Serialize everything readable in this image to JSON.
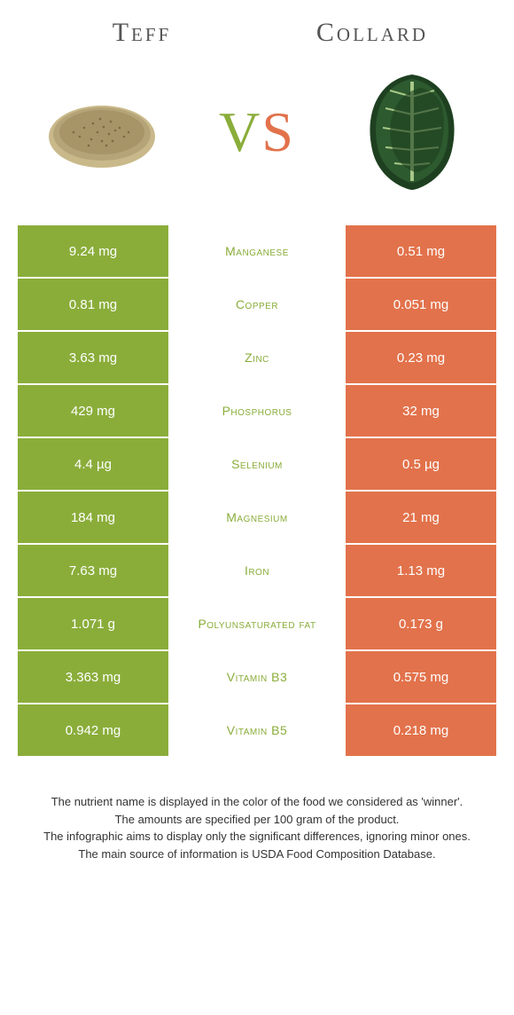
{
  "header": {
    "left": "Teff",
    "right": "Collard"
  },
  "vs": {
    "v": "V",
    "s": "S"
  },
  "colors": {
    "left": "#8aad3a",
    "right": "#e2724b",
    "left_text": "#ffffff",
    "right_text": "#ffffff",
    "background": "#ffffff",
    "header_text": "#555555"
  },
  "table": {
    "rows": [
      {
        "left": "9.24 mg",
        "label": "Manganese",
        "right": "0.51 mg",
        "winner": "left"
      },
      {
        "left": "0.81 mg",
        "label": "Copper",
        "right": "0.051 mg",
        "winner": "left"
      },
      {
        "left": "3.63 mg",
        "label": "Zinc",
        "right": "0.23 mg",
        "winner": "left"
      },
      {
        "left": "429 mg",
        "label": "Phosphorus",
        "right": "32 mg",
        "winner": "left"
      },
      {
        "left": "4.4 µg",
        "label": "Selenium",
        "right": "0.5 µg",
        "winner": "left"
      },
      {
        "left": "184 mg",
        "label": "Magnesium",
        "right": "21 mg",
        "winner": "left"
      },
      {
        "left": "7.63 mg",
        "label": "Iron",
        "right": "1.13 mg",
        "winner": "left"
      },
      {
        "left": "1.071 g",
        "label": "Polyunsaturated fat",
        "right": "0.173 g",
        "winner": "left"
      },
      {
        "left": "3.363 mg",
        "label": "Vitamin B3",
        "right": "0.575 mg",
        "winner": "left"
      },
      {
        "left": "0.942 mg",
        "label": "Vitamin B5",
        "right": "0.218 mg",
        "winner": "left"
      }
    ]
  },
  "footer": {
    "line1": "The nutrient name is displayed in the color of the food we considered as 'winner'.",
    "line2": "The amounts are specified per 100 gram of the product.",
    "line3": "The infographic aims to display only the significant differences, ignoring minor ones.",
    "line4": "The main source of information is USDA Food Composition Database."
  }
}
